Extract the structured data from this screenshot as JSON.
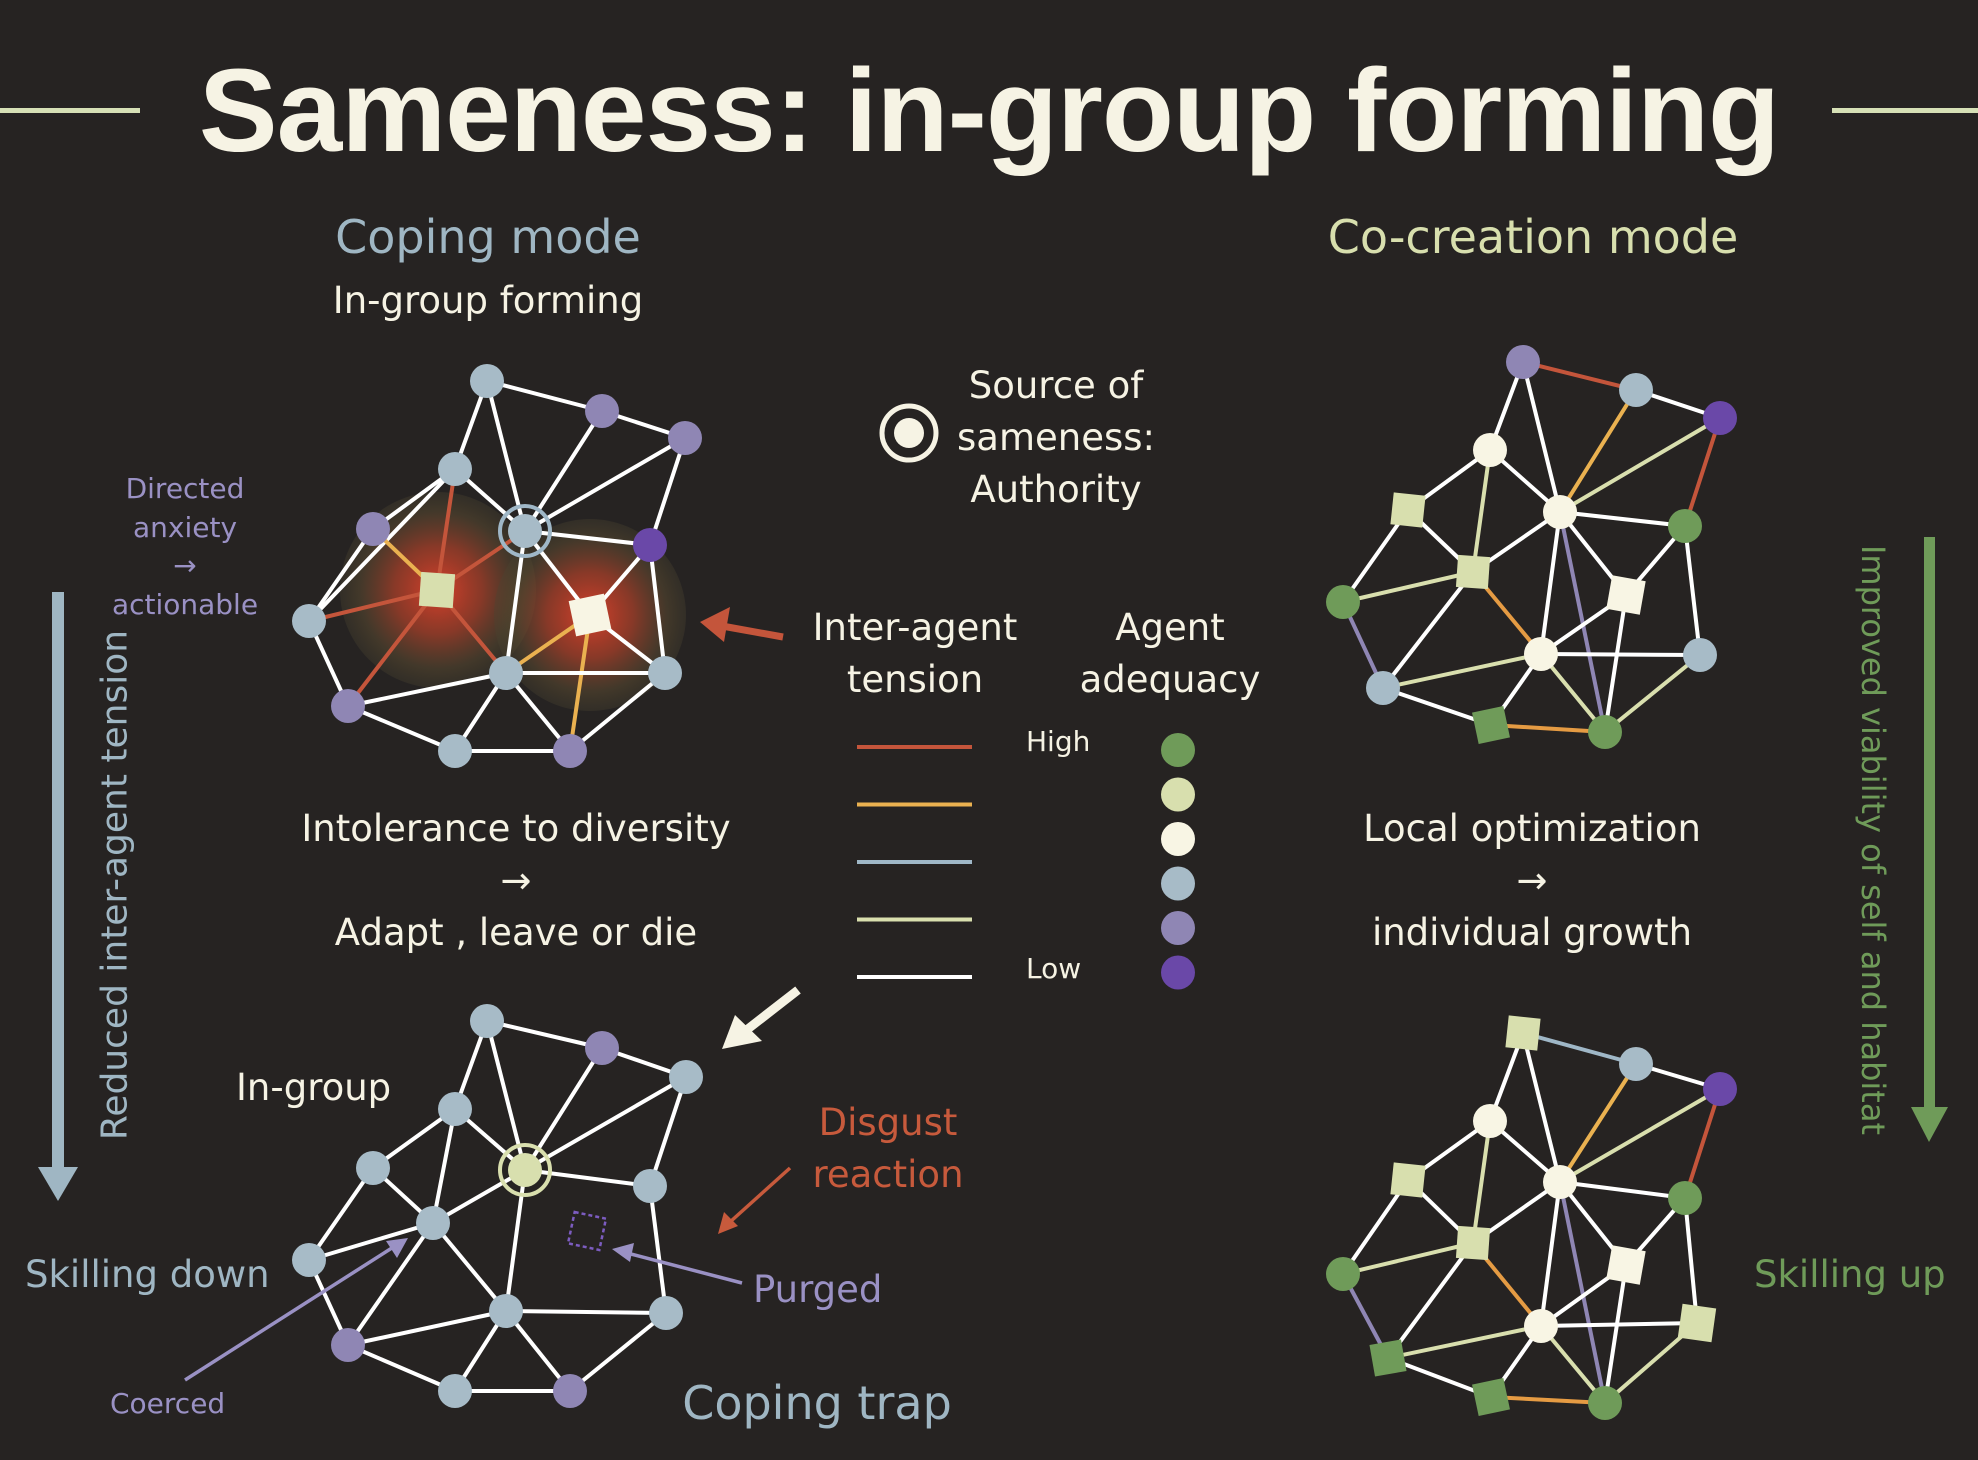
{
  "title": "Sameness: in-group forming",
  "coping": {
    "heading": "Coping mode",
    "subheading": "In-group forming",
    "side_note": [
      "Directed",
      "anxiety",
      "→",
      "actionable"
    ],
    "caption": [
      "Intolerance to diversity",
      "→",
      "Adapt , leave or die"
    ],
    "ingroup_label": "In-group",
    "disgust_label": [
      "Disgust",
      "reaction"
    ],
    "purged_label": "Purged",
    "coerced_label": "Coerced",
    "trap_label": "Coping trap",
    "left_arrow_label": "Reduced inter-agent tension",
    "skill_label": "Skilling down"
  },
  "legend": {
    "source_label": [
      "Source of",
      "sameness:",
      "Authority"
    ],
    "tension_label": [
      "Inter-agent",
      "tension"
    ],
    "adequacy_label": [
      "Agent",
      "adequacy"
    ],
    "high": "High",
    "low": "Low",
    "tension_colors": [
      "#c4553b",
      "#eab150",
      "#9fb7c7",
      "#d9dfae",
      "#ffffff"
    ],
    "adequacy_colors": [
      "#6f9b59",
      "#d8dfae",
      "#f8f5e4",
      "#a7bbc7",
      "#8f86b4",
      "#6a48a8"
    ]
  },
  "cocreation": {
    "heading": "Co-creation mode",
    "caption": [
      "Local optimization",
      "→",
      "individual growth"
    ],
    "right_arrow_label": "Improved viability of self and habitat",
    "skill_label": "Skilling up"
  },
  "colors": {
    "background": "#262322",
    "title": "#f6f3e4",
    "rule": "#d6e0b6",
    "coping_blue": "#9fb6c3",
    "cocreation_cream": "#d8dfae",
    "disgust_red": "#c75a3c",
    "purple_note": "#9a91c4",
    "viability_green": "#6f9b59"
  }
}
